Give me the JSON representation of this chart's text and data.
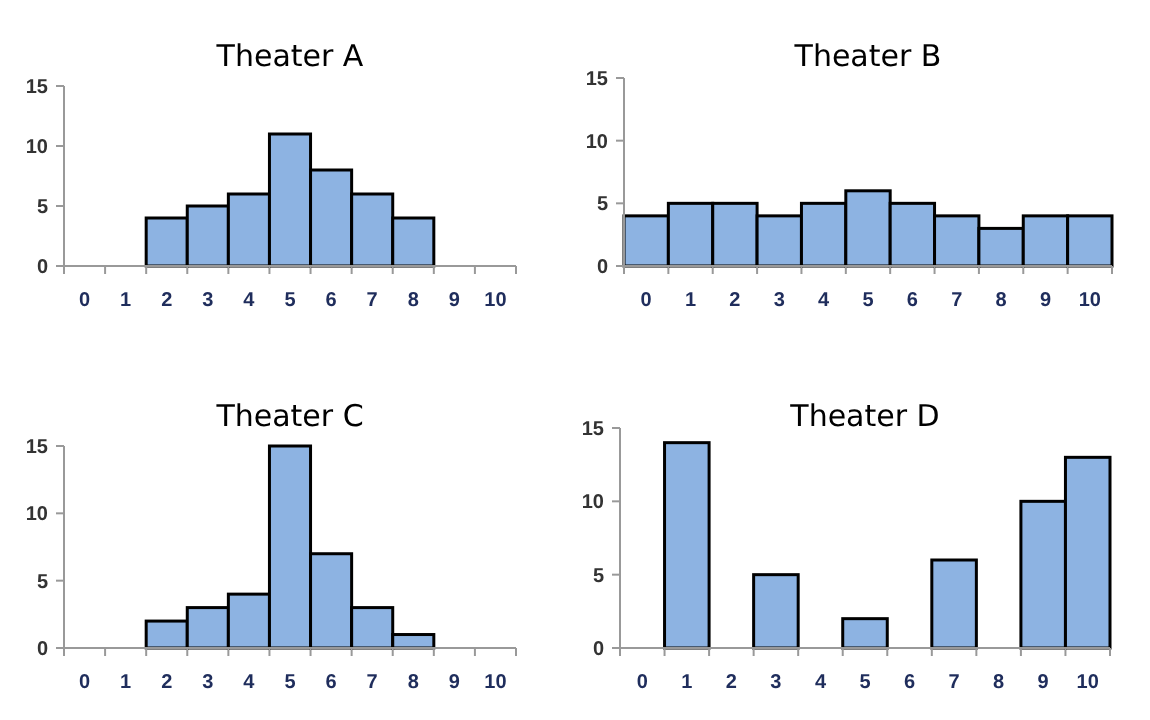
{
  "chart_data": [
    {
      "type": "bar",
      "title": "Theater A",
      "categories": [
        "0",
        "1",
        "2",
        "3",
        "4",
        "5",
        "6",
        "7",
        "8",
        "9",
        "10"
      ],
      "values": [
        0,
        0,
        4,
        5,
        6,
        11,
        8,
        6,
        4,
        0,
        0
      ],
      "color": "#8db3e2",
      "ylim": [
        0,
        15
      ],
      "yticks": [
        0,
        5,
        10,
        15
      ]
    },
    {
      "type": "bar",
      "title": "Theater B",
      "categories": [
        "0",
        "1",
        "2",
        "3",
        "4",
        "5",
        "6",
        "7",
        "8",
        "9",
        "10"
      ],
      "values": [
        4,
        5,
        5,
        4,
        5,
        6,
        5,
        4,
        3,
        4,
        4
      ],
      "color": "#8db3e2",
      "ylim": [
        0,
        15
      ],
      "yticks": [
        0,
        5,
        10,
        15
      ]
    },
    {
      "type": "bar",
      "title": "Theater C",
      "categories": [
        "0",
        "1",
        "2",
        "3",
        "4",
        "5",
        "6",
        "7",
        "8",
        "9",
        "10"
      ],
      "values": [
        0,
        0,
        2,
        3,
        4,
        15,
        7,
        3,
        1,
        0,
        0
      ],
      "color": "#8db3e2",
      "ylim": [
        0,
        15
      ],
      "yticks": [
        0,
        5,
        10,
        15
      ]
    },
    {
      "type": "bar",
      "title": "Theater D",
      "categories": [
        "0",
        "1",
        "2",
        "3",
        "4",
        "5",
        "6",
        "7",
        "8",
        "9",
        "10"
      ],
      "values": [
        0,
        14,
        0,
        5,
        0,
        2,
        0,
        6,
        0,
        10,
        13
      ],
      "color": "#8db3e2",
      "ylim": [
        0,
        15
      ],
      "yticks": [
        0,
        5,
        10,
        15
      ]
    }
  ]
}
